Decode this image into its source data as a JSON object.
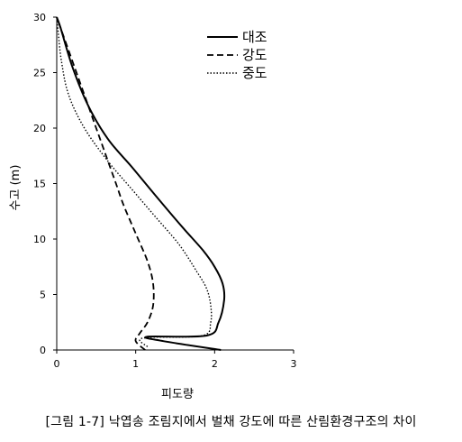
{
  "caption": "[그림 1-7] 낙엽송 조림지에서 벌채 강도에 따른 산림환경구조의 차이",
  "chart_data": {
    "type": "line",
    "title": "",
    "xlabel": "피도량",
    "ylabel": "수고 (m)",
    "xlim": [
      0,
      3
    ],
    "ylim": [
      0,
      30
    ],
    "xticks": [
      0,
      1,
      2,
      3
    ],
    "yticks": [
      0,
      5,
      10,
      15,
      20,
      25,
      30
    ],
    "grid": false,
    "legend_position": "top-right",
    "series": [
      {
        "name": "대조",
        "style": "solid",
        "points": [
          [
            2.08,
            0
          ],
          [
            1.35,
            0.8
          ],
          [
            1.15,
            1.2
          ],
          [
            1.9,
            1.3
          ],
          [
            2.05,
            2.5
          ],
          [
            2.12,
            4.5
          ],
          [
            2.1,
            6
          ],
          [
            2.0,
            7.5
          ],
          [
            1.85,
            9
          ],
          [
            1.6,
            11
          ],
          [
            1.3,
            13.5
          ],
          [
            0.95,
            16.5
          ],
          [
            0.65,
            19
          ],
          [
            0.4,
            22
          ],
          [
            0.2,
            25.5
          ],
          [
            0.05,
            29
          ],
          [
            0,
            30
          ]
        ]
      },
      {
        "name": "강도",
        "style": "dashed",
        "points": [
          [
            1.12,
            0
          ],
          [
            1.0,
            0.8
          ],
          [
            1.05,
            1.5
          ],
          [
            1.15,
            2.5
          ],
          [
            1.22,
            4
          ],
          [
            1.22,
            6
          ],
          [
            1.15,
            8
          ],
          [
            1.0,
            10.5
          ],
          [
            0.85,
            13
          ],
          [
            0.75,
            15
          ],
          [
            0.6,
            18
          ],
          [
            0.45,
            21
          ],
          [
            0.3,
            24
          ],
          [
            0.15,
            27
          ],
          [
            0.05,
            29
          ],
          [
            0,
            30
          ]
        ]
      },
      {
        "name": "중도",
        "style": "dotted",
        "points": [
          [
            1.15,
            0.3
          ],
          [
            1.05,
            0.9
          ],
          [
            1.2,
            1.15
          ],
          [
            1.85,
            1.3
          ],
          [
            1.95,
            2.5
          ],
          [
            1.95,
            4
          ],
          [
            1.9,
            5.5
          ],
          [
            1.78,
            7
          ],
          [
            1.55,
            9.5
          ],
          [
            1.25,
            12
          ],
          [
            0.95,
            14.5
          ],
          [
            0.65,
            17
          ],
          [
            0.35,
            20
          ],
          [
            0.15,
            23
          ],
          [
            0.06,
            26
          ],
          [
            0.02,
            28.5
          ],
          [
            0,
            30
          ]
        ]
      }
    ]
  }
}
